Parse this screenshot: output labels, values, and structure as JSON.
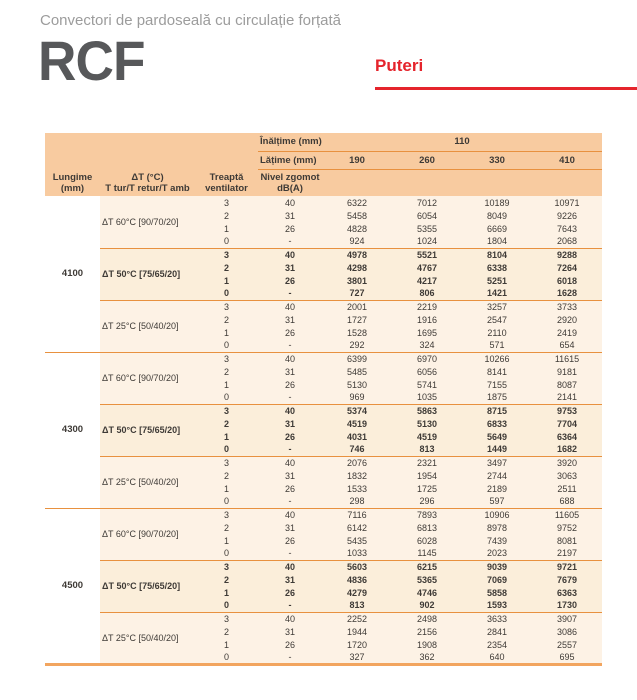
{
  "page": {
    "subtitle": "Convectori de pardoseală cu circulație forțată",
    "product_code": "RCF",
    "section_title": "Puteri"
  },
  "colors": {
    "accent_red": "#e5242c",
    "header_bg": "#f8cba0",
    "body_bg": "#fdf2e5",
    "bold_body_bg": "#fbeeda",
    "orange_line": "#e8913f",
    "thick_bottom_line": "#f2a55f",
    "text_dark": "#3e3a36",
    "subtitle_gray": "#9c9c9c",
    "product_gray": "#57585a"
  },
  "table": {
    "height_label": "Înălțime (mm)",
    "height_value": "110",
    "width_label": "Lățime (mm)",
    "width_values": [
      "190",
      "260",
      "330",
      "410"
    ],
    "col_headers": {
      "length_line1": "Lungime",
      "length_line2": "(mm)",
      "dt_line1": "ΔT (°C)",
      "dt_line2": "T tur/T retur/T amb",
      "fan_line1": "Treaptă",
      "fan_line2": "ventilator",
      "noise_line1": "Nivel zgomot",
      "noise_line2": "dB(A)"
    },
    "groups": [
      {
        "length": "4100",
        "sections": [
          {
            "dt_label": "ΔT 60°C [90/70/20]",
            "bold": false,
            "rows": [
              [
                "3",
                "40",
                "6322",
                "7012",
                "10189",
                "10971"
              ],
              [
                "2",
                "31",
                "5458",
                "6054",
                "8049",
                "9226"
              ],
              [
                "1",
                "26",
                "4828",
                "5355",
                "6669",
                "7643"
              ],
              [
                "0",
                "-",
                "924",
                "1024",
                "1804",
                "2068"
              ]
            ]
          },
          {
            "dt_label": "ΔT 50°C [75/65/20]",
            "bold": true,
            "rows": [
              [
                "3",
                "40",
                "4978",
                "5521",
                "8104",
                "9288"
              ],
              [
                "2",
                "31",
                "4298",
                "4767",
                "6338",
                "7264"
              ],
              [
                "1",
                "26",
                "3801",
                "4217",
                "5251",
                "6018"
              ],
              [
                "0",
                "-",
                "727",
                "806",
                "1421",
                "1628"
              ]
            ]
          },
          {
            "dt_label": "ΔT 25°C [50/40/20]",
            "bold": false,
            "rows": [
              [
                "3",
                "40",
                "2001",
                "2219",
                "3257",
                "3733"
              ],
              [
                "2",
                "31",
                "1727",
                "1916",
                "2547",
                "2920"
              ],
              [
                "1",
                "26",
                "1528",
                "1695",
                "2110",
                "2419"
              ],
              [
                "0",
                "-",
                "292",
                "324",
                "571",
                "654"
              ]
            ]
          }
        ]
      },
      {
        "length": "4300",
        "sections": [
          {
            "dt_label": "ΔT 60°C [90/70/20]",
            "bold": false,
            "rows": [
              [
                "3",
                "40",
                "6399",
                "6970",
                "10266",
                "11615"
              ],
              [
                "2",
                "31",
                "5485",
                "6056",
                "8141",
                "9181"
              ],
              [
                "1",
                "26",
                "5130",
                "5741",
                "7155",
                "8087"
              ],
              [
                "0",
                "-",
                "969",
                "1035",
                "1875",
                "2141"
              ]
            ]
          },
          {
            "dt_label": "ΔT 50°C [75/65/20]",
            "bold": true,
            "rows": [
              [
                "3",
                "40",
                "5374",
                "5863",
                "8715",
                "9753"
              ],
              [
                "2",
                "31",
                "4519",
                "5130",
                "6833",
                "7704"
              ],
              [
                "1",
                "26",
                "4031",
                "4519",
                "5649",
                "6364"
              ],
              [
                "0",
                "-",
                "746",
                "813",
                "1449",
                "1682"
              ]
            ]
          },
          {
            "dt_label": "ΔT 25°C [50/40/20]",
            "bold": false,
            "rows": [
              [
                "3",
                "40",
                "2076",
                "2321",
                "3497",
                "3920"
              ],
              [
                "2",
                "31",
                "1832",
                "1954",
                "2744",
                "3063"
              ],
              [
                "1",
                "26",
                "1533",
                "1725",
                "2189",
                "2511"
              ],
              [
                "0",
                "-",
                "298",
                "296",
                "597",
                "688"
              ]
            ]
          }
        ]
      },
      {
        "length": "4500",
        "sections": [
          {
            "dt_label": "ΔT 60°C [90/70/20]",
            "bold": false,
            "rows": [
              [
                "3",
                "40",
                "7116",
                "7893",
                "10906",
                "11605"
              ],
              [
                "2",
                "31",
                "6142",
                "6813",
                "8978",
                "9752"
              ],
              [
                "1",
                "26",
                "5435",
                "6028",
                "7439",
                "8081"
              ],
              [
                "0",
                "-",
                "1033",
                "1145",
                "2023",
                "2197"
              ]
            ]
          },
          {
            "dt_label": "ΔT 50°C [75/65/20]",
            "bold": true,
            "rows": [
              [
                "3",
                "40",
                "5603",
                "6215",
                "9039",
                "9721"
              ],
              [
                "2",
                "31",
                "4836",
                "5365",
                "7069",
                "7679"
              ],
              [
                "1",
                "26",
                "4279",
                "4746",
                "5858",
                "6363"
              ],
              [
                "0",
                "-",
                "813",
                "902",
                "1593",
                "1730"
              ]
            ]
          },
          {
            "dt_label": "ΔT 25°C [50/40/20]",
            "bold": false,
            "rows": [
              [
                "3",
                "40",
                "2252",
                "2498",
                "3633",
                "3907"
              ],
              [
                "2",
                "31",
                "1944",
                "2156",
                "2841",
                "3086"
              ],
              [
                "1",
                "26",
                "1720",
                "1908",
                "2354",
                "2557"
              ],
              [
                "0",
                "-",
                "327",
                "362",
                "640",
                "695"
              ]
            ]
          }
        ]
      }
    ]
  }
}
